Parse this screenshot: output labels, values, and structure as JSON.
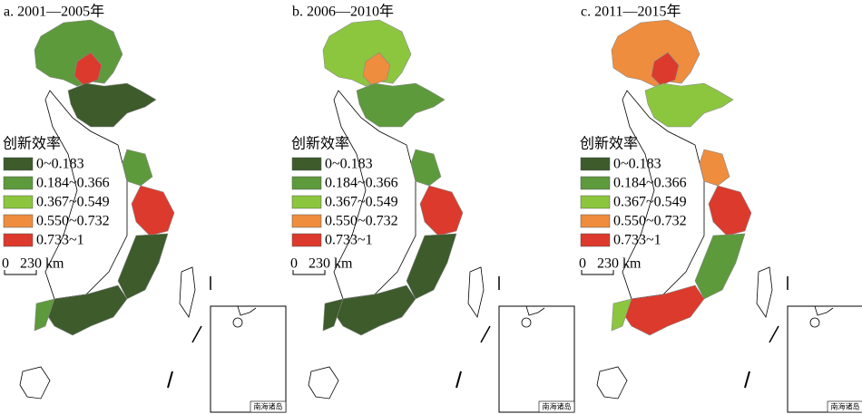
{
  "panels": [
    {
      "title": "a. 2001—2005年",
      "legend": {
        "title": "创新效率",
        "items": [
          {
            "label": "0~0.183",
            "color": "#3d5b2b"
          },
          {
            "label": "0.184~0.366",
            "color": "#5d9a3c"
          },
          {
            "label": "0.367~0.549",
            "color": "#8cc63f"
          },
          {
            "label": "0.550~0.732",
            "color": "#ee8d3e"
          },
          {
            "label": "0.733~1",
            "color": "#dc3a2c"
          }
        ]
      },
      "scale": {
        "start": "0",
        "label": "230 km"
      },
      "inset": {
        "label": "南海诸岛"
      }
    },
    {
      "title": "b. 2006—2010年",
      "legend": {
        "title": "创新效率",
        "items": [
          {
            "label": "0~0.183",
            "color": "#3d5b2b"
          },
          {
            "label": "0.184~0.366",
            "color": "#5d9a3c"
          },
          {
            "label": "0.367~0.549",
            "color": "#8cc63f"
          },
          {
            "label": "0.550~0.732",
            "color": "#ee8d3e"
          },
          {
            "label": "0.733~1",
            "color": "#dc3a2c"
          }
        ]
      },
      "scale": {
        "start": "0",
        "label": "230 km"
      },
      "inset": {
        "label": "南海诸岛"
      }
    },
    {
      "title": "c. 2011—2015年",
      "legend": {
        "title": "创新效率",
        "items": [
          {
            "label": "0~0.183",
            "color": "#3d5b2b"
          },
          {
            "label": "0.184~0.366",
            "color": "#5d9a3c"
          },
          {
            "label": "0.367~0.549",
            "color": "#8cc63f"
          },
          {
            "label": "0.550~0.732",
            "color": "#ee8d3e"
          },
          {
            "label": "0.733~1",
            "color": "#dc3a2c"
          }
        ]
      },
      "scale": {
        "start": "0",
        "label": "230 km"
      },
      "inset": {
        "label": "南海诸岛"
      }
    }
  ]
}
